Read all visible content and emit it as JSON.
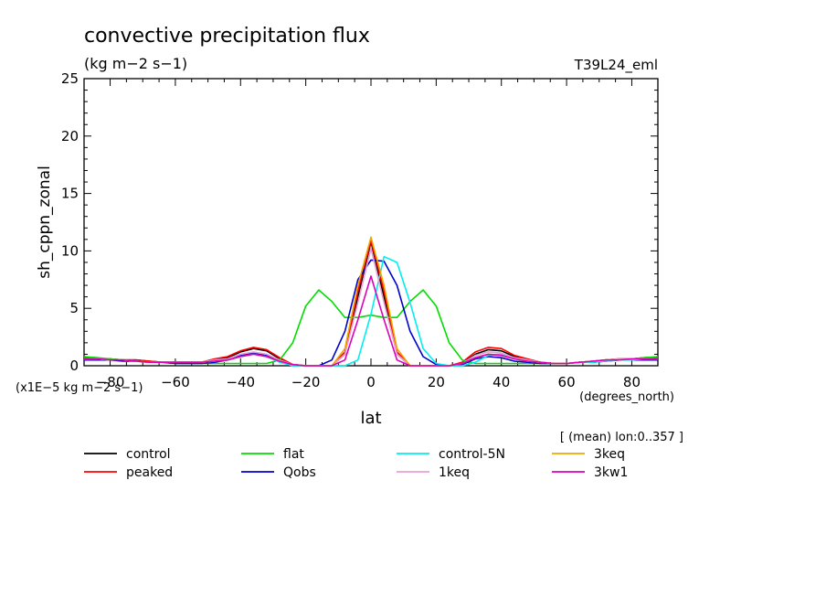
{
  "chart_data": {
    "type": "line",
    "title": "convective precipitation flux",
    "subtitle": "(kg m−2 s−1)",
    "top_right_label": "T39L24_eml",
    "ylabel": "sh_cppn_zonal",
    "xlabel": "lat",
    "x_units": "(degrees_north)",
    "y_scale_note": "(x1E−5 kg m−2 s−1)",
    "mean_note": "[ (mean) lon:0..357 ]",
    "xlim": [
      -88,
      88
    ],
    "ylim": [
      0,
      25
    ],
    "xticks": [
      -80,
      -60,
      -40,
      -20,
      0,
      20,
      40,
      60,
      80
    ],
    "xtick_labels": [
      "−80",
      "−60",
      "−40",
      "−20",
      "0",
      "20",
      "40",
      "60",
      "80"
    ],
    "yticks": [
      0,
      5,
      10,
      15,
      20,
      25
    ],
    "ytick_labels": [
      "0",
      "5",
      "10",
      "15",
      "20",
      "25"
    ],
    "x": [
      -88,
      -84,
      -80,
      -76,
      -72,
      -68,
      -64,
      -60,
      -56,
      -52,
      -48,
      -44,
      -40,
      -36,
      -32,
      -28,
      -24,
      -20,
      -16,
      -12,
      -8,
      -4,
      0,
      4,
      8,
      12,
      16,
      20,
      24,
      28,
      32,
      36,
      40,
      44,
      48,
      52,
      56,
      60,
      64,
      68,
      72,
      76,
      80,
      84,
      88
    ],
    "series": [
      {
        "name": "control",
        "color": "#000000",
        "values": [
          0.7,
          0.6,
          0.6,
          0.5,
          0.5,
          0.4,
          0.3,
          0.3,
          0.3,
          0.3,
          0.5,
          0.7,
          1.2,
          1.5,
          1.3,
          0.6,
          0.1,
          0.0,
          0.0,
          0.0,
          1.0,
          6.0,
          10.8,
          6.0,
          1.0,
          0.0,
          0.0,
          0.0,
          0.0,
          0.2,
          1.0,
          1.4,
          1.3,
          0.8,
          0.5,
          0.3,
          0.2,
          0.2,
          0.3,
          0.4,
          0.5,
          0.6,
          0.6,
          0.7,
          0.7
        ]
      },
      {
        "name": "peaked",
        "color": "#ff0000",
        "values": [
          0.7,
          0.6,
          0.6,
          0.5,
          0.5,
          0.4,
          0.3,
          0.3,
          0.3,
          0.3,
          0.6,
          0.8,
          1.3,
          1.6,
          1.4,
          0.7,
          0.1,
          0.0,
          0.0,
          0.0,
          1.2,
          6.5,
          10.9,
          6.5,
          1.2,
          0.0,
          0.0,
          0.0,
          0.0,
          0.3,
          1.2,
          1.6,
          1.5,
          0.9,
          0.6,
          0.3,
          0.2,
          0.2,
          0.3,
          0.4,
          0.5,
          0.6,
          0.6,
          0.7,
          0.7
        ]
      },
      {
        "name": "flat",
        "color": "#00dd00",
        "values": [
          0.8,
          0.7,
          0.6,
          0.5,
          0.4,
          0.3,
          0.3,
          0.2,
          0.2,
          0.2,
          0.2,
          0.2,
          0.2,
          0.2,
          0.2,
          0.5,
          2.0,
          5.2,
          6.6,
          5.6,
          4.2,
          4.2,
          4.4,
          4.2,
          4.2,
          5.6,
          6.6,
          5.2,
          2.0,
          0.5,
          0.2,
          0.2,
          0.2,
          0.2,
          0.2,
          0.2,
          0.2,
          0.2,
          0.3,
          0.3,
          0.4,
          0.5,
          0.6,
          0.7,
          0.8
        ]
      },
      {
        "name": "Qobs",
        "color": "#0000cc",
        "values": [
          0.5,
          0.5,
          0.5,
          0.4,
          0.4,
          0.3,
          0.3,
          0.2,
          0.2,
          0.2,
          0.3,
          0.5,
          0.9,
          1.1,
          0.9,
          0.4,
          0.1,
          0.0,
          0.0,
          0.5,
          3.0,
          7.5,
          9.2,
          9.1,
          7.0,
          3.0,
          0.8,
          0.1,
          0.0,
          0.1,
          0.6,
          0.8,
          0.7,
          0.4,
          0.3,
          0.2,
          0.2,
          0.2,
          0.3,
          0.3,
          0.4,
          0.5,
          0.5,
          0.5,
          0.5
        ]
      },
      {
        "name": "control-5N",
        "color": "#00eeee",
        "values": [
          0.6,
          0.6,
          0.5,
          0.5,
          0.4,
          0.3,
          0.3,
          0.3,
          0.3,
          0.3,
          0.4,
          0.5,
          0.8,
          1.0,
          0.8,
          0.3,
          0.0,
          0.0,
          0.0,
          0.0,
          0.0,
          0.5,
          4.5,
          9.5,
          9.0,
          5.5,
          1.5,
          0.2,
          0.0,
          0.0,
          0.3,
          0.9,
          1.0,
          0.6,
          0.4,
          0.3,
          0.2,
          0.2,
          0.3,
          0.3,
          0.4,
          0.5,
          0.5,
          0.6,
          0.6
        ]
      },
      {
        "name": "1keq",
        "color": "#e8a0d8",
        "values": [
          0.6,
          0.6,
          0.5,
          0.5,
          0.4,
          0.3,
          0.3,
          0.3,
          0.3,
          0.3,
          0.5,
          0.6,
          1.0,
          1.2,
          1.0,
          0.5,
          0.1,
          0.0,
          0.0,
          0.0,
          1.0,
          5.5,
          10.2,
          5.5,
          1.0,
          0.0,
          0.0,
          0.0,
          0.0,
          0.2,
          0.9,
          1.2,
          1.1,
          0.7,
          0.5,
          0.3,
          0.2,
          0.2,
          0.3,
          0.4,
          0.5,
          0.6,
          0.6,
          0.6,
          0.6
        ]
      },
      {
        "name": "3keq",
        "color": "#eeaa00",
        "values": [
          0.6,
          0.6,
          0.5,
          0.5,
          0.4,
          0.3,
          0.3,
          0.3,
          0.3,
          0.3,
          0.4,
          0.5,
          0.8,
          1.0,
          0.8,
          0.4,
          0.1,
          0.0,
          0.0,
          0.0,
          1.5,
          7.0,
          11.2,
          7.0,
          1.5,
          0.0,
          0.0,
          0.0,
          0.0,
          0.2,
          0.7,
          1.0,
          0.9,
          0.6,
          0.4,
          0.3,
          0.2,
          0.2,
          0.3,
          0.4,
          0.5,
          0.5,
          0.6,
          0.6,
          0.6
        ]
      },
      {
        "name": "3kw1",
        "color": "#dd00bb",
        "values": [
          0.6,
          0.6,
          0.5,
          0.5,
          0.4,
          0.3,
          0.3,
          0.3,
          0.3,
          0.3,
          0.4,
          0.5,
          0.8,
          1.0,
          0.8,
          0.4,
          0.1,
          0.0,
          0.0,
          0.0,
          0.5,
          4.0,
          7.8,
          4.0,
          0.5,
          0.0,
          0.0,
          0.0,
          0.0,
          0.2,
          0.7,
          1.0,
          0.9,
          0.6,
          0.4,
          0.3,
          0.2,
          0.2,
          0.3,
          0.4,
          0.5,
          0.5,
          0.6,
          0.6,
          0.6
        ]
      }
    ],
    "legend_order": [
      "control",
      "flat",
      "control-5N",
      "3keq",
      "peaked",
      "Qobs",
      "1keq",
      "3kw1"
    ]
  }
}
